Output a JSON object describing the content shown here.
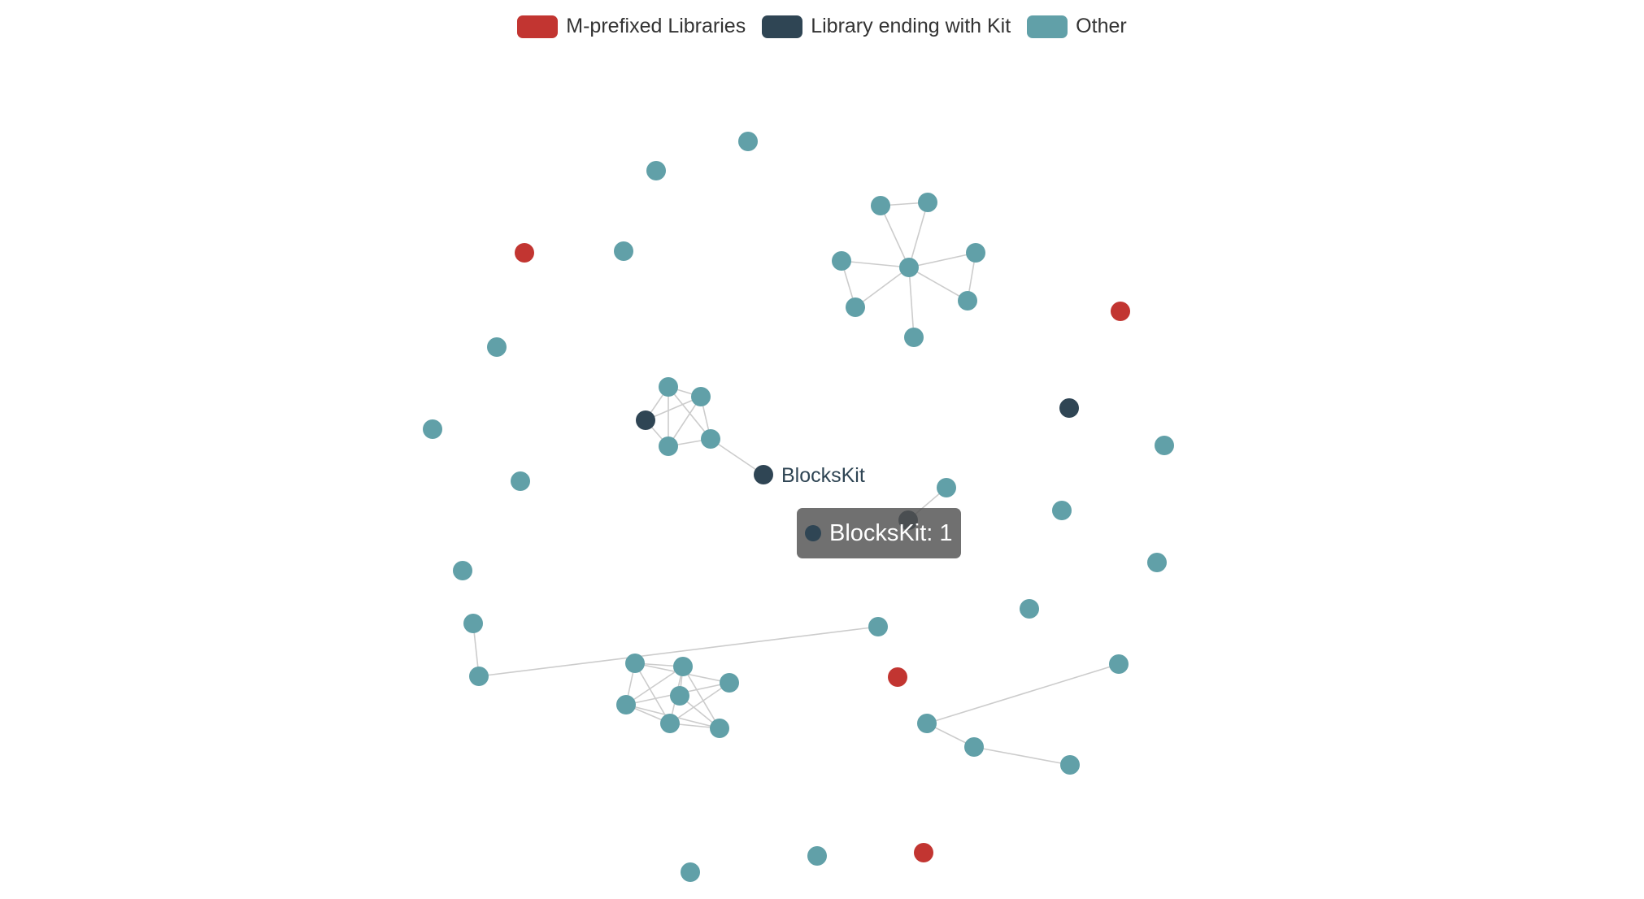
{
  "legend": {
    "items": [
      {
        "label": "M-prefixed Libraries",
        "color": "#c23531"
      },
      {
        "label": "Library ending with Kit",
        "color": "#2f4554"
      },
      {
        "label": "Other",
        "color": "#61a0a8"
      }
    ]
  },
  "graph": {
    "edge_color": "#cccccc",
    "nodes": [
      {
        "id": "n1",
        "category": 2
      },
      {
        "id": "n2",
        "category": 2
      },
      {
        "id": "n3",
        "category": 0
      },
      {
        "id": "n4",
        "category": 2
      },
      {
        "id": "n5",
        "category": 2
      },
      {
        "id": "n6",
        "category": 2
      },
      {
        "id": "n7",
        "category": 2
      },
      {
        "id": "n8",
        "category": 2
      },
      {
        "id": "n9",
        "category": 2
      },
      {
        "id": "n10",
        "category": 2
      },
      {
        "id": "n11",
        "category": 2
      },
      {
        "id": "n12",
        "category": 2
      },
      {
        "id": "n13",
        "category": 0
      },
      {
        "id": "n14",
        "category": 2
      },
      {
        "id": "n15",
        "category": 2
      },
      {
        "id": "n16",
        "category": 2
      },
      {
        "id": "n17",
        "category": 1
      },
      {
        "id": "n18",
        "category": 2
      },
      {
        "id": "n19",
        "category": 2
      },
      {
        "id": "n20",
        "category": 1
      },
      {
        "id": "n21",
        "category": 2
      },
      {
        "id": "n22",
        "category": 2
      },
      {
        "id": "n23",
        "category": 1,
        "label": "BlocksKit"
      },
      {
        "id": "n24",
        "category": 2
      },
      {
        "id": "n25",
        "category": 1
      },
      {
        "id": "n26",
        "category": 2
      },
      {
        "id": "n27",
        "category": 2
      },
      {
        "id": "n28",
        "category": 2
      },
      {
        "id": "n29",
        "category": 2
      },
      {
        "id": "n30",
        "category": 2
      },
      {
        "id": "n31",
        "category": 2
      },
      {
        "id": "n32",
        "category": 2
      },
      {
        "id": "n33",
        "category": 2
      },
      {
        "id": "n34",
        "category": 2
      },
      {
        "id": "n35",
        "category": 0
      },
      {
        "id": "n36",
        "category": 2
      },
      {
        "id": "n37",
        "category": 2
      },
      {
        "id": "n38",
        "category": 2
      },
      {
        "id": "n39",
        "category": 2
      },
      {
        "id": "n40",
        "category": 2
      },
      {
        "id": "n41",
        "category": 2
      },
      {
        "id": "n42",
        "category": 2
      },
      {
        "id": "n43",
        "category": 2
      },
      {
        "id": "n44",
        "category": 2
      },
      {
        "id": "n45",
        "category": 2
      },
      {
        "id": "n46",
        "category": 2
      },
      {
        "id": "n47",
        "category": 0
      },
      {
        "id": "n48",
        "category": 2
      }
    ],
    "edges": [
      [
        "n7",
        "n8"
      ],
      [
        "n7",
        "n11"
      ],
      [
        "n8",
        "n11"
      ],
      [
        "n9",
        "n11"
      ],
      [
        "n10",
        "n11"
      ],
      [
        "n9",
        "n10"
      ],
      [
        "n11",
        "n12"
      ],
      [
        "n11",
        "n14"
      ],
      [
        "n11",
        "n15"
      ],
      [
        "n14",
        "n12"
      ],
      [
        "n17",
        "n18"
      ],
      [
        "n17",
        "n19"
      ],
      [
        "n17",
        "n21"
      ],
      [
        "n18",
        "n19"
      ],
      [
        "n18",
        "n21"
      ],
      [
        "n18",
        "n22"
      ],
      [
        "n19",
        "n22"
      ],
      [
        "n21",
        "n22"
      ],
      [
        "n19",
        "n21"
      ],
      [
        "n22",
        "n23"
      ],
      [
        "n25",
        "n26"
      ],
      [
        "n31",
        "n32"
      ],
      [
        "n32",
        "n33"
      ],
      [
        "n37",
        "n38"
      ],
      [
        "n37",
        "n39"
      ],
      [
        "n37",
        "n40"
      ],
      [
        "n37",
        "n42"
      ],
      [
        "n38",
        "n40"
      ],
      [
        "n38",
        "n41"
      ],
      [
        "n38",
        "n43"
      ],
      [
        "n39",
        "n40"
      ],
      [
        "n39",
        "n42"
      ],
      [
        "n40",
        "n42"
      ],
      [
        "n40",
        "n43"
      ],
      [
        "n41",
        "n43"
      ],
      [
        "n42",
        "n43"
      ],
      [
        "n38",
        "n42"
      ],
      [
        "n34",
        "n36"
      ],
      [
        "n36",
        "n44"
      ],
      [
        "n44",
        "n45"
      ]
    ]
  },
  "tooltip": {
    "text": "BlocksKit: 1",
    "color": "#2f4554"
  }
}
